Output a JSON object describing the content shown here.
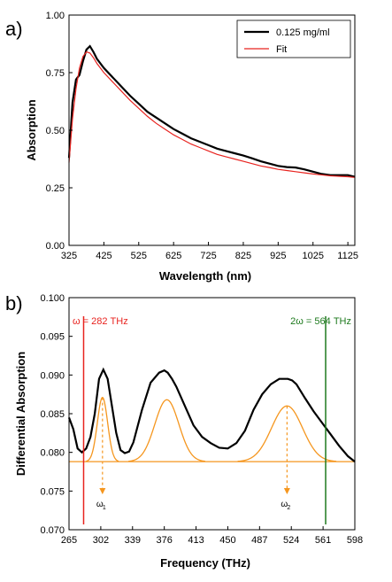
{
  "colors": {
    "measured": "#000000",
    "fit": "#e8231f",
    "component": "#f5961e",
    "omega_line": "#e8231f",
    "two_omega_line": "#1e7a1e",
    "omega_marker": "#f5961e"
  },
  "chart_data": [
    {
      "type": "line",
      "panel_label": "a)",
      "xlabel": "Wavelength (nm)",
      "ylabel": "Absorption",
      "xlim": [
        325,
        1145
      ],
      "ylim": [
        0,
        1.0
      ],
      "x_ticks": [
        325,
        425,
        525,
        625,
        725,
        825,
        925,
        1025,
        1125
      ],
      "y_ticks": [
        0.0,
        0.25,
        0.5,
        0.75,
        1.0
      ],
      "y_tick_labels": [
        "0.00",
        "0.25",
        "0.50",
        "0.75",
        "1.00"
      ],
      "grid": false,
      "legend": "top-right",
      "series": [
        {
          "name": "0.125 mg/ml",
          "color": "#000000",
          "x": [
            325,
            335,
            345,
            355,
            365,
            375,
            385,
            395,
            405,
            425,
            450,
            475,
            500,
            525,
            550,
            575,
            600,
            625,
            650,
            675,
            700,
            725,
            750,
            775,
            800,
            825,
            850,
            875,
            900,
            925,
            950,
            975,
            1000,
            1025,
            1050,
            1075,
            1100,
            1125,
            1145
          ],
          "y": [
            0.38,
            0.62,
            0.72,
            0.74,
            0.8,
            0.85,
            0.865,
            0.84,
            0.81,
            0.77,
            0.73,
            0.69,
            0.65,
            0.615,
            0.58,
            0.555,
            0.53,
            0.505,
            0.485,
            0.465,
            0.45,
            0.435,
            0.42,
            0.41,
            0.4,
            0.39,
            0.378,
            0.365,
            0.355,
            0.345,
            0.34,
            0.338,
            0.33,
            0.32,
            0.31,
            0.305,
            0.305,
            0.305,
            0.298
          ]
        },
        {
          "name": "Fit",
          "color": "#e8231f",
          "x": [
            325,
            335,
            345,
            355,
            365,
            375,
            385,
            395,
            405,
            425,
            450,
            475,
            500,
            525,
            550,
            575,
            600,
            625,
            650,
            675,
            700,
            725,
            750,
            775,
            800,
            825,
            850,
            875,
            900,
            925,
            950,
            975,
            1000,
            1025,
            1050,
            1075,
            1100,
            1125,
            1145
          ],
          "y": [
            0.36,
            0.55,
            0.68,
            0.77,
            0.82,
            0.84,
            0.835,
            0.815,
            0.79,
            0.75,
            0.71,
            0.67,
            0.63,
            0.595,
            0.56,
            0.53,
            0.505,
            0.48,
            0.46,
            0.44,
            0.425,
            0.41,
            0.395,
            0.385,
            0.375,
            0.365,
            0.355,
            0.345,
            0.338,
            0.33,
            0.325,
            0.32,
            0.315,
            0.31,
            0.306,
            0.302,
            0.3,
            0.298,
            0.295
          ]
        }
      ]
    },
    {
      "type": "line",
      "panel_label": "b)",
      "xlabel": "Frequency (THz)",
      "ylabel": "Differential Absorption",
      "xlim": [
        265,
        598
      ],
      "ylim": [
        0.07,
        0.1
      ],
      "x_ticks": [
        265,
        302,
        339,
        376,
        413,
        450,
        487,
        524,
        561,
        598
      ],
      "y_ticks": [
        0.07,
        0.075,
        0.08,
        0.085,
        0.09,
        0.095,
        0.1
      ],
      "y_tick_labels": [
        "0.070",
        "0.075",
        "0.080",
        "0.085",
        "0.090",
        "0.095",
        "0.100"
      ],
      "grid": false,
      "series": [
        {
          "color": "#000000",
          "x": [
            265,
            270,
            275,
            280,
            285,
            290,
            295,
            300,
            305,
            310,
            315,
            320,
            325,
            330,
            335,
            340,
            350,
            360,
            370,
            376,
            380,
            385,
            390,
            400,
            410,
            420,
            430,
            440,
            450,
            460,
            470,
            480,
            490,
            500,
            510,
            520,
            525,
            530,
            540,
            550,
            560,
            570,
            580,
            590,
            598
          ],
          "y": [
            0.0845,
            0.083,
            0.0805,
            0.08,
            0.0805,
            0.082,
            0.085,
            0.0895,
            0.0907,
            0.0895,
            0.086,
            0.0825,
            0.0803,
            0.0799,
            0.0801,
            0.0813,
            0.0855,
            0.089,
            0.0903,
            0.0906,
            0.0903,
            0.0895,
            0.0885,
            0.086,
            0.0835,
            0.082,
            0.0812,
            0.0806,
            0.0805,
            0.0812,
            0.0828,
            0.0855,
            0.0875,
            0.0888,
            0.0895,
            0.0895,
            0.0893,
            0.0888,
            0.087,
            0.0853,
            0.0838,
            0.0823,
            0.0808,
            0.0795,
            0.0788
          ]
        },
        {
          "color": "#f5961e",
          "center": 304,
          "height": 0.0871,
          "baseline": 0.0788,
          "sigma": 6
        },
        {
          "color": "#f5961e",
          "center": 379,
          "height": 0.0868,
          "baseline": 0.0788,
          "sigma": 14
        },
        {
          "color": "#f5961e",
          "center": 519,
          "height": 0.086,
          "baseline": 0.0788,
          "sigma": 18
        }
      ],
      "annotations": {
        "omega": {
          "text": "ω = 282 THz",
          "x": 282
        },
        "two_omega": {
          "text": "2ω = 564 THz",
          "x": 564
        },
        "omega1": {
          "symbol": "ω",
          "sub": "1",
          "x": 304
        },
        "omega2": {
          "symbol": "ω",
          "sub": "2",
          "x": 519
        }
      }
    }
  ]
}
